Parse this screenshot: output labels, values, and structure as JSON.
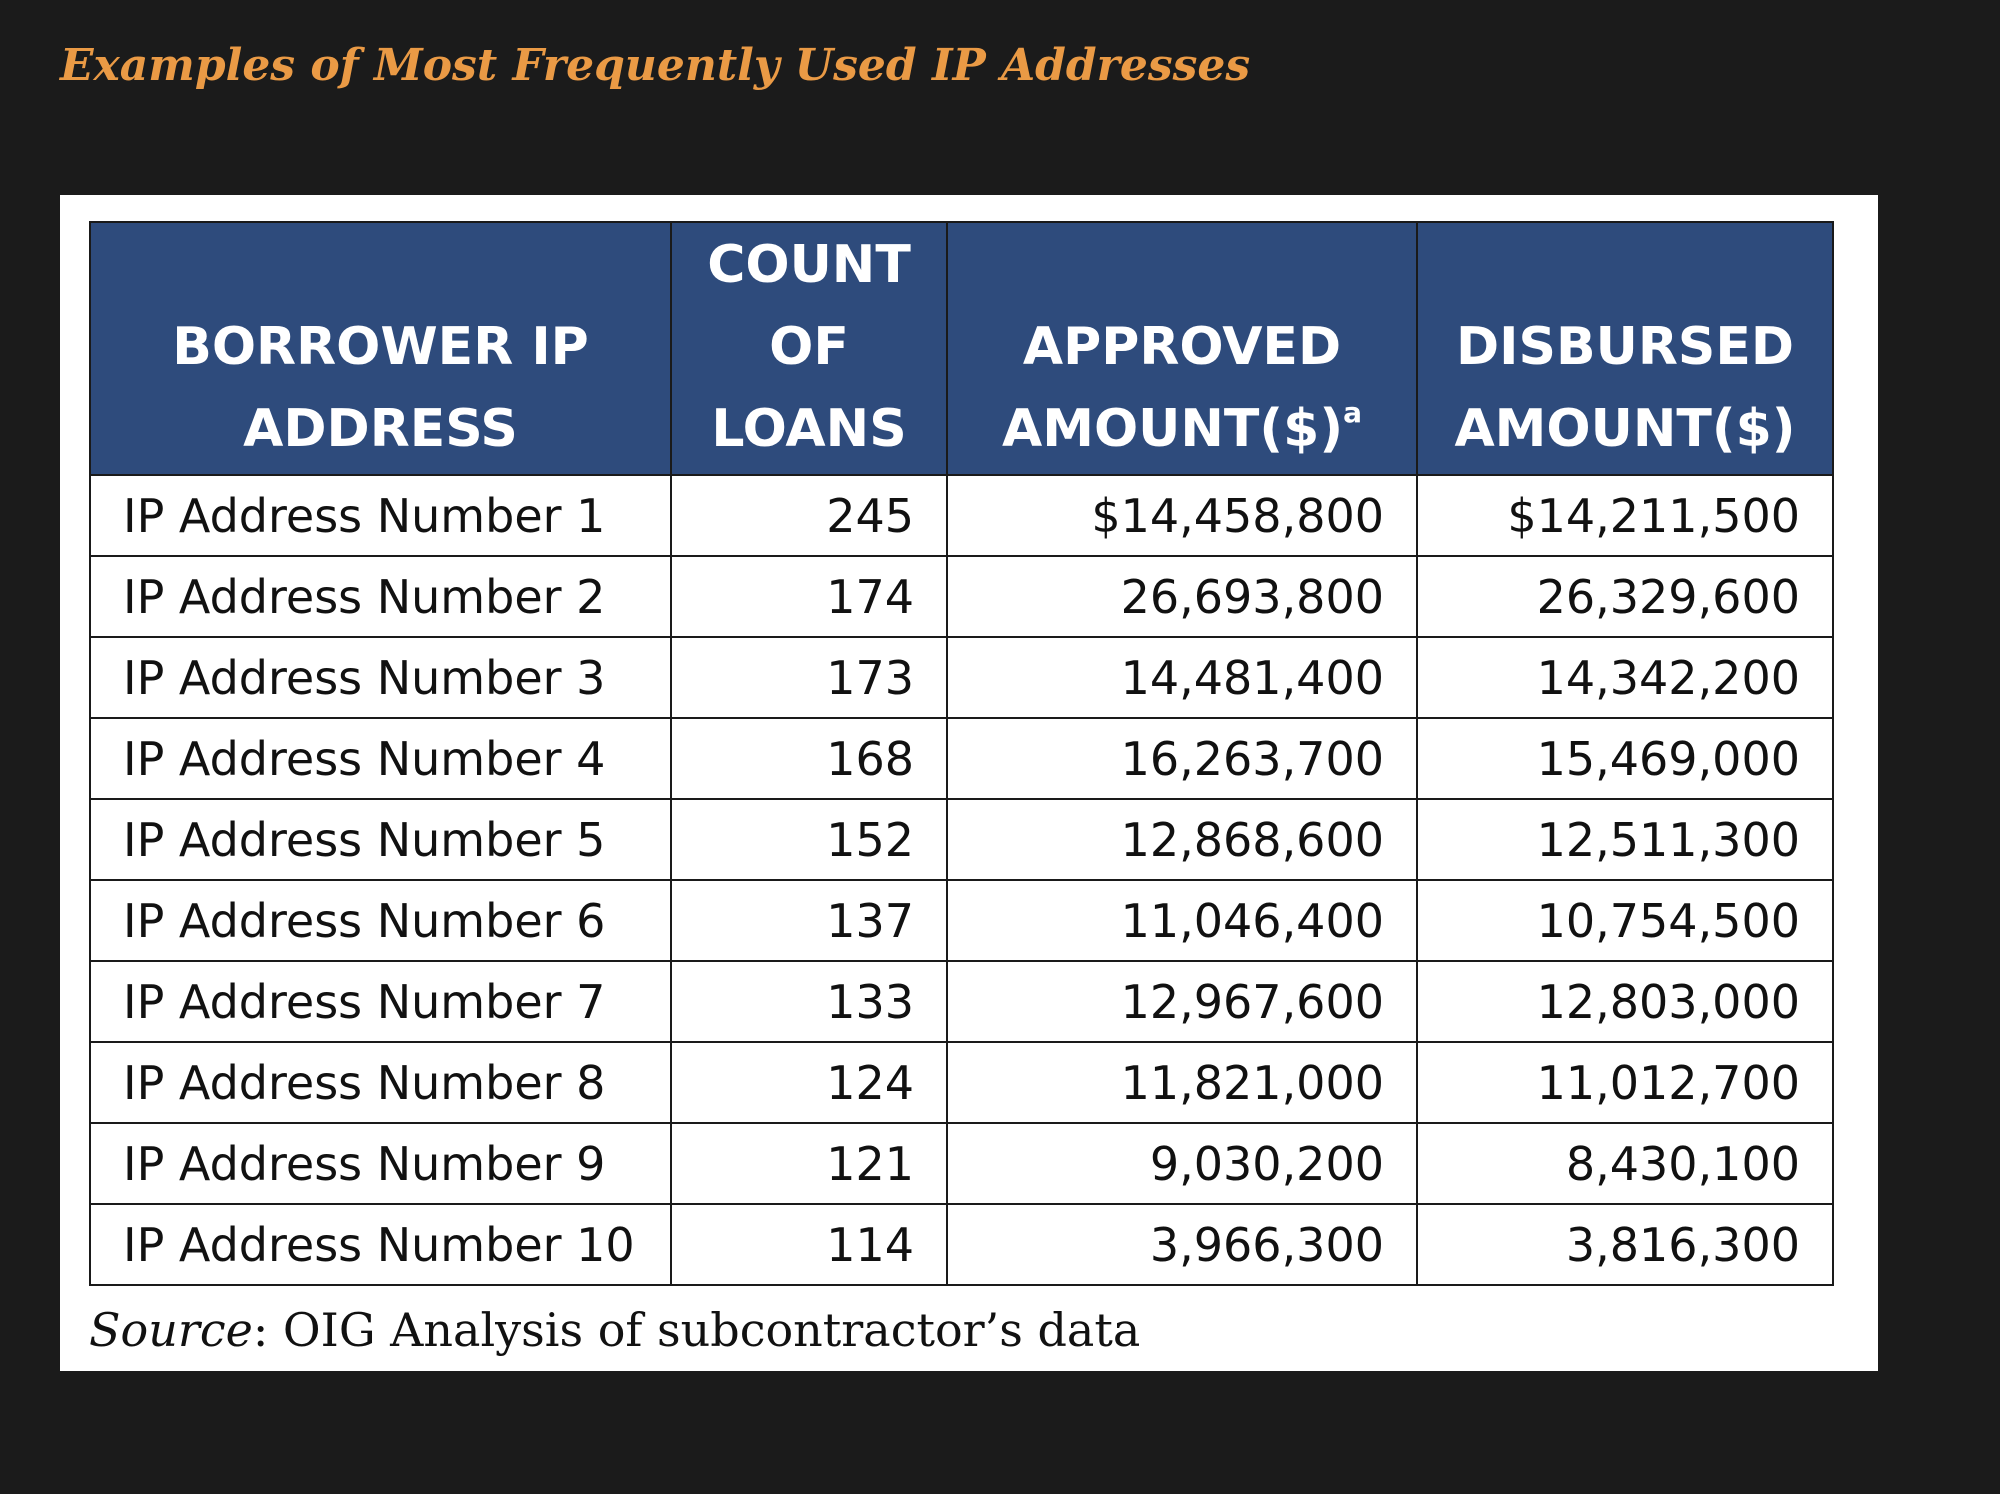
{
  "header": {
    "title": "Examples of Most Frequently Used IP Addresses"
  },
  "table": {
    "columns": [
      {
        "text": "BORROWER IP ADDRESS"
      },
      {
        "text": "COUNT OF LOANS"
      },
      {
        "text": "APPROVED AMOUNT($)",
        "superscript": "a"
      },
      {
        "text": "DISBURSED AMOUNT($)"
      }
    ],
    "rows": [
      [
        "IP Address Number 1",
        "245",
        "$14,458,800",
        "$14,211,500"
      ],
      [
        "IP Address Number 2",
        "174",
        "26,693,800",
        "26,329,600"
      ],
      [
        "IP Address Number 3",
        "173",
        "14,481,400",
        "14,342,200"
      ],
      [
        "IP Address Number 4",
        "168",
        "16,263,700",
        "15,469,000"
      ],
      [
        "IP Address Number 5",
        "152",
        "12,868,600",
        "12,511,300"
      ],
      [
        "IP Address Number 6",
        "137",
        "11,046,400",
        "10,754,500"
      ],
      [
        "IP Address Number 7",
        "133",
        "12,967,600",
        "12,803,000"
      ],
      [
        "IP Address Number 8",
        "124",
        "11,821,000",
        "11,012,700"
      ],
      [
        "IP Address Number 9",
        "121",
        "9,030,200",
        "8,430,100"
      ],
      [
        "IP Address Number 10",
        "114",
        "3,966,300",
        "3,816,300"
      ]
    ]
  },
  "source": {
    "label": "Source",
    "text": ": OIG Analysis of subcontractor’s data"
  }
}
